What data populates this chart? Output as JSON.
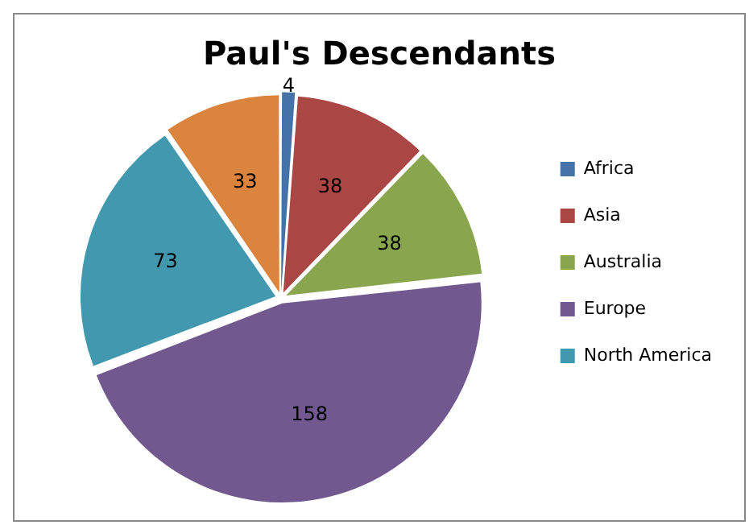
{
  "chart_data": {
    "type": "pie",
    "title": "Paul's Descendants",
    "categories": [
      "Africa",
      "Asia",
      "Australia",
      "Europe",
      "North America",
      null
    ],
    "values": [
      4,
      38,
      38,
      158,
      73,
      33
    ],
    "colors": [
      "#4572a7",
      "#aa4643",
      "#89a54e",
      "#71588f",
      "#4198af",
      "#db843d"
    ],
    "data_labels": true,
    "legend": "right"
  }
}
